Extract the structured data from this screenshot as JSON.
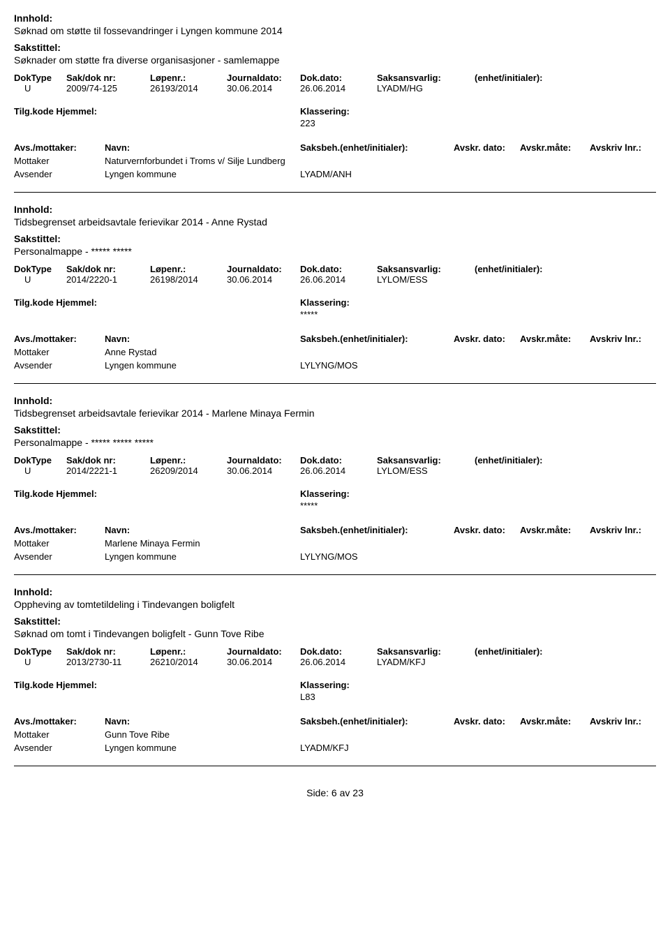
{
  "labels": {
    "innhold": "Innhold:",
    "sakstittel": "Sakstittel:",
    "doktype": "DokType",
    "sakdok": "Sak/dok nr:",
    "lopenr": "Løpenr.:",
    "journaldato": "Journaldato:",
    "dokdato": "Dok.dato:",
    "saksansvarlig": "Saksansvarlig:",
    "enhet": "(enhet/initialer):",
    "tilgkode": "Tilg.kode",
    "hjemmel": "Hjemmel:",
    "klassering": "Klassering:",
    "avsmottaker": "Avs./mottaker:",
    "navn": "Navn:",
    "saksbeh": "Saksbeh.(enhet/initialer):",
    "avskrdato": "Avskr. dato:",
    "avskrmate": "Avskr.måte:",
    "avskrivlnr": "Avskriv lnr.:",
    "mottaker": "Mottaker",
    "avsender": "Avsender",
    "side": "Side:",
    "av": "av"
  },
  "entries": [
    {
      "innhold": "Søknad om støtte til fossevandringer i Lyngen kommune 2014",
      "sakstittel": "Søknader om støtte fra diverse organisasjoner - samlemappe",
      "doktype": "U",
      "sakdok": "2009/74-125",
      "lopenr": "26193/2014",
      "journaldato": "30.06.2014",
      "dokdato": "26.06.2014",
      "saksansvarlig": "LYADM/HG",
      "klassering": "223",
      "mottaker_navn": "Naturvernforbundet i Troms v/ Silje Lundberg",
      "avsender_navn": "Lyngen kommune",
      "avsender_code": "LYADM/ANH"
    },
    {
      "innhold": "Tidsbegrenset arbeidsavtale ferievikar 2014 - Anne Rystad",
      "sakstittel": "Personalmappe - ***** *****",
      "doktype": "U",
      "sakdok": "2014/2220-1",
      "lopenr": "26198/2014",
      "journaldato": "30.06.2014",
      "dokdato": "26.06.2014",
      "saksansvarlig": "LYLOM/ESS",
      "klassering": "*****",
      "mottaker_navn": "Anne Rystad",
      "avsender_navn": "Lyngen kommune",
      "avsender_code": "LYLYNG/MOS"
    },
    {
      "innhold": "Tidsbegrenset arbeidsavtale ferievikar 2014 - Marlene Minaya Fermin",
      "sakstittel": "Personalmappe - ***** ***** *****",
      "doktype": "U",
      "sakdok": "2014/2221-1",
      "lopenr": "26209/2014",
      "journaldato": "30.06.2014",
      "dokdato": "26.06.2014",
      "saksansvarlig": "LYLOM/ESS",
      "klassering": "*****",
      "mottaker_navn": "Marlene Minaya Fermin",
      "avsender_navn": "Lyngen kommune",
      "avsender_code": "LYLYNG/MOS"
    },
    {
      "innhold": "Oppheving av tomtetildeling i Tindevangen boligfelt",
      "sakstittel": "Søknad om tomt i Tindevangen boligfelt - Gunn Tove Ribe",
      "doktype": "U",
      "sakdok": "2013/2730-11",
      "lopenr": "26210/2014",
      "journaldato": "30.06.2014",
      "dokdato": "26.06.2014",
      "saksansvarlig": "LYADM/KFJ",
      "klassering": "L83",
      "mottaker_navn": "Gunn Tove Ribe",
      "avsender_navn": "Lyngen kommune",
      "avsender_code": "LYADM/KFJ"
    }
  ],
  "page": {
    "current": "6",
    "total": "23"
  }
}
